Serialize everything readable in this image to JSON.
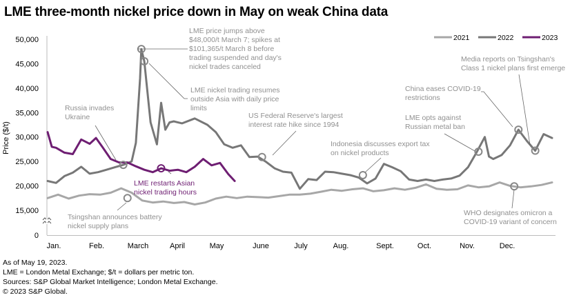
{
  "chart_data": {
    "type": "line",
    "title": "LME three-month nickel price down in May on weak China data",
    "xlabel": "",
    "ylabel": "Price ($/t)",
    "yticks": [
      0,
      15000,
      20000,
      25000,
      30000,
      35000,
      40000,
      45000,
      50000
    ],
    "ytick_labels": [
      "0",
      "15,000",
      "20,000",
      "25,000",
      "30,000",
      "35,000",
      "40,000",
      "45,000",
      "50,000"
    ],
    "axis_break": "between 0 and 15,000",
    "ylim": [
      15000,
      50000
    ],
    "xticks": [
      "Jan.",
      "Feb.",
      "March",
      "April",
      "May",
      "June",
      "July",
      "Aug.",
      "Sept.",
      "Oct.",
      "Nov.",
      "Dec."
    ],
    "x_unit": "month index (0 = Jan. 1, 12 = Dec. 31)",
    "grid": false,
    "legend_position": "top-right",
    "colors": {
      "2021": "#a7a7a7",
      "2022": "#777777",
      "2023": "#6e1e72",
      "annotation": "#909090",
      "axis": "#bbbbbb"
    },
    "series": [
      {
        "name": "2021",
        "x": [
          0.0,
          0.25,
          0.5,
          0.75,
          1.0,
          1.25,
          1.5,
          1.75,
          2.0,
          2.25,
          2.5,
          2.75,
          3.0,
          3.25,
          3.5,
          3.75,
          4.0,
          4.25,
          4.5,
          4.75,
          5.0,
          5.25,
          5.5,
          5.75,
          6.0,
          6.25,
          6.5,
          6.75,
          7.0,
          7.25,
          7.5,
          7.75,
          8.0,
          8.25,
          8.5,
          8.75,
          9.0,
          9.25,
          9.5,
          9.75,
          10.0,
          10.25,
          10.5,
          10.75,
          11.0,
          11.25,
          11.5,
          11.75,
          12.0
        ],
        "values": [
          17500,
          18200,
          17400,
          18000,
          18300,
          18200,
          18600,
          19500,
          18600,
          17000,
          16600,
          16800,
          16500,
          16700,
          16200,
          16600,
          17400,
          17800,
          17500,
          17800,
          17700,
          17600,
          17900,
          18200,
          18200,
          18400,
          18800,
          19200,
          19000,
          19300,
          19500,
          18900,
          19100,
          19500,
          19200,
          19600,
          20300,
          19400,
          19200,
          19300,
          20100,
          19700,
          19900,
          20700,
          20000,
          19700,
          19900,
          20200,
          20700
        ]
      },
      {
        "name": "2022",
        "x": [
          0.0,
          0.2,
          0.4,
          0.6,
          0.8,
          1.0,
          1.2,
          1.4,
          1.6,
          1.8,
          2.0,
          2.1,
          2.2,
          2.23,
          2.3,
          2.45,
          2.6,
          2.7,
          2.8,
          2.9,
          3.0,
          3.2,
          3.5,
          3.8,
          4.0,
          4.2,
          4.4,
          4.6,
          4.8,
          5.0,
          5.2,
          5.4,
          5.6,
          5.8,
          6.0,
          6.2,
          6.4,
          6.6,
          6.8,
          7.0,
          7.2,
          7.4,
          7.6,
          7.8,
          8.0,
          8.2,
          8.4,
          8.6,
          8.8,
          9.0,
          9.2,
          9.4,
          9.6,
          9.8,
          10.0,
          10.2,
          10.4,
          10.5,
          10.6,
          10.8,
          11.0,
          11.2,
          11.4,
          11.6,
          11.8,
          12.0
        ],
        "values": [
          21000,
          20600,
          22000,
          22700,
          23900,
          22500,
          22800,
          23300,
          23800,
          24300,
          25000,
          28800,
          42000,
          48000,
          45500,
          33000,
          28500,
          37000,
          31500,
          33000,
          33200,
          32800,
          33800,
          32500,
          31000,
          28500,
          27800,
          28300,
          25900,
          26000,
          24900,
          23600,
          22900,
          22700,
          19400,
          21400,
          21200,
          22900,
          22800,
          22500,
          22200,
          21700,
          20500,
          21500,
          24500,
          23800,
          23000,
          21300,
          21000,
          21300,
          21000,
          21300,
          21500,
          22100,
          23800,
          26800,
          30000,
          26000,
          25500,
          26300,
          28300,
          31500,
          29200,
          27200,
          30600,
          29800
        ]
      },
      {
        "name": "2023",
        "x": [
          0.0,
          0.1,
          0.2,
          0.4,
          0.6,
          0.8,
          1.0,
          1.15,
          1.3,
          1.5,
          1.7,
          1.9,
          2.1,
          2.3,
          2.5,
          2.7,
          2.9,
          3.1,
          3.3,
          3.5,
          3.7,
          3.9,
          4.1,
          4.3,
          4.45
        ],
        "values": [
          31000,
          28000,
          27800,
          26800,
          26500,
          29500,
          28600,
          29800,
          28000,
          25500,
          24800,
          24800,
          24000,
          23300,
          22800,
          23600,
          23100,
          23300,
          22800,
          23900,
          25500,
          24200,
          24700,
          22400,
          21000
        ]
      }
    ],
    "annotations": [
      {
        "text": "LME price jumps above $48,000/t March 7; spikes at $101,365/t March 8 before trading suspended and day's nickel trades canceled",
        "series": "2022",
        "x": 2.23,
        "value": 48000
      },
      {
        "text": "LME nickel trading resumes outside Asia with daily price limits",
        "series": "2022",
        "x": 2.3,
        "value": 45500
      },
      {
        "text": "Russia invades Ukraine",
        "series": "2022",
        "x": 1.8,
        "value": 24300
      },
      {
        "text": "LME restarts Asian nickel trading hours",
        "series": "2023",
        "x": 2.7,
        "value": 23600
      },
      {
        "text": "Tsingshan announces battery nickel supply plans",
        "series": "2021",
        "x": 1.9,
        "value": 17500
      },
      {
        "text": "US Federal Reserve's largest interest rate hike since 1994",
        "series": "2022",
        "x": 5.1,
        "value": 25900
      },
      {
        "text": "Indonesia discusses export tax on nickel products",
        "series": "2022",
        "x": 7.5,
        "value": 22200
      },
      {
        "text": "LME opts against Russian metal ban",
        "series": "2022",
        "x": 10.25,
        "value": 27000
      },
      {
        "text": "China eases COVID-19 restrictions",
        "series": "2022",
        "x": 11.2,
        "value": 31500
      },
      {
        "text": "Media reports on Tsingshan's Class 1 nickel plans first emerge",
        "series": "2022",
        "x": 11.6,
        "value": 27200
      },
      {
        "text": "WHO designates omicron a COVID-19 variant of concern",
        "series": "2021",
        "x": 11.1,
        "value": 19900
      }
    ]
  },
  "footnotes": [
    "As of May 19, 2023.",
    "LME = London Metal Exchange; $/t = dollars per metric ton.",
    "Sources: S&P Global Market Intelligence; London Metal Exchange.",
    "© 2023 S&P Global."
  ]
}
